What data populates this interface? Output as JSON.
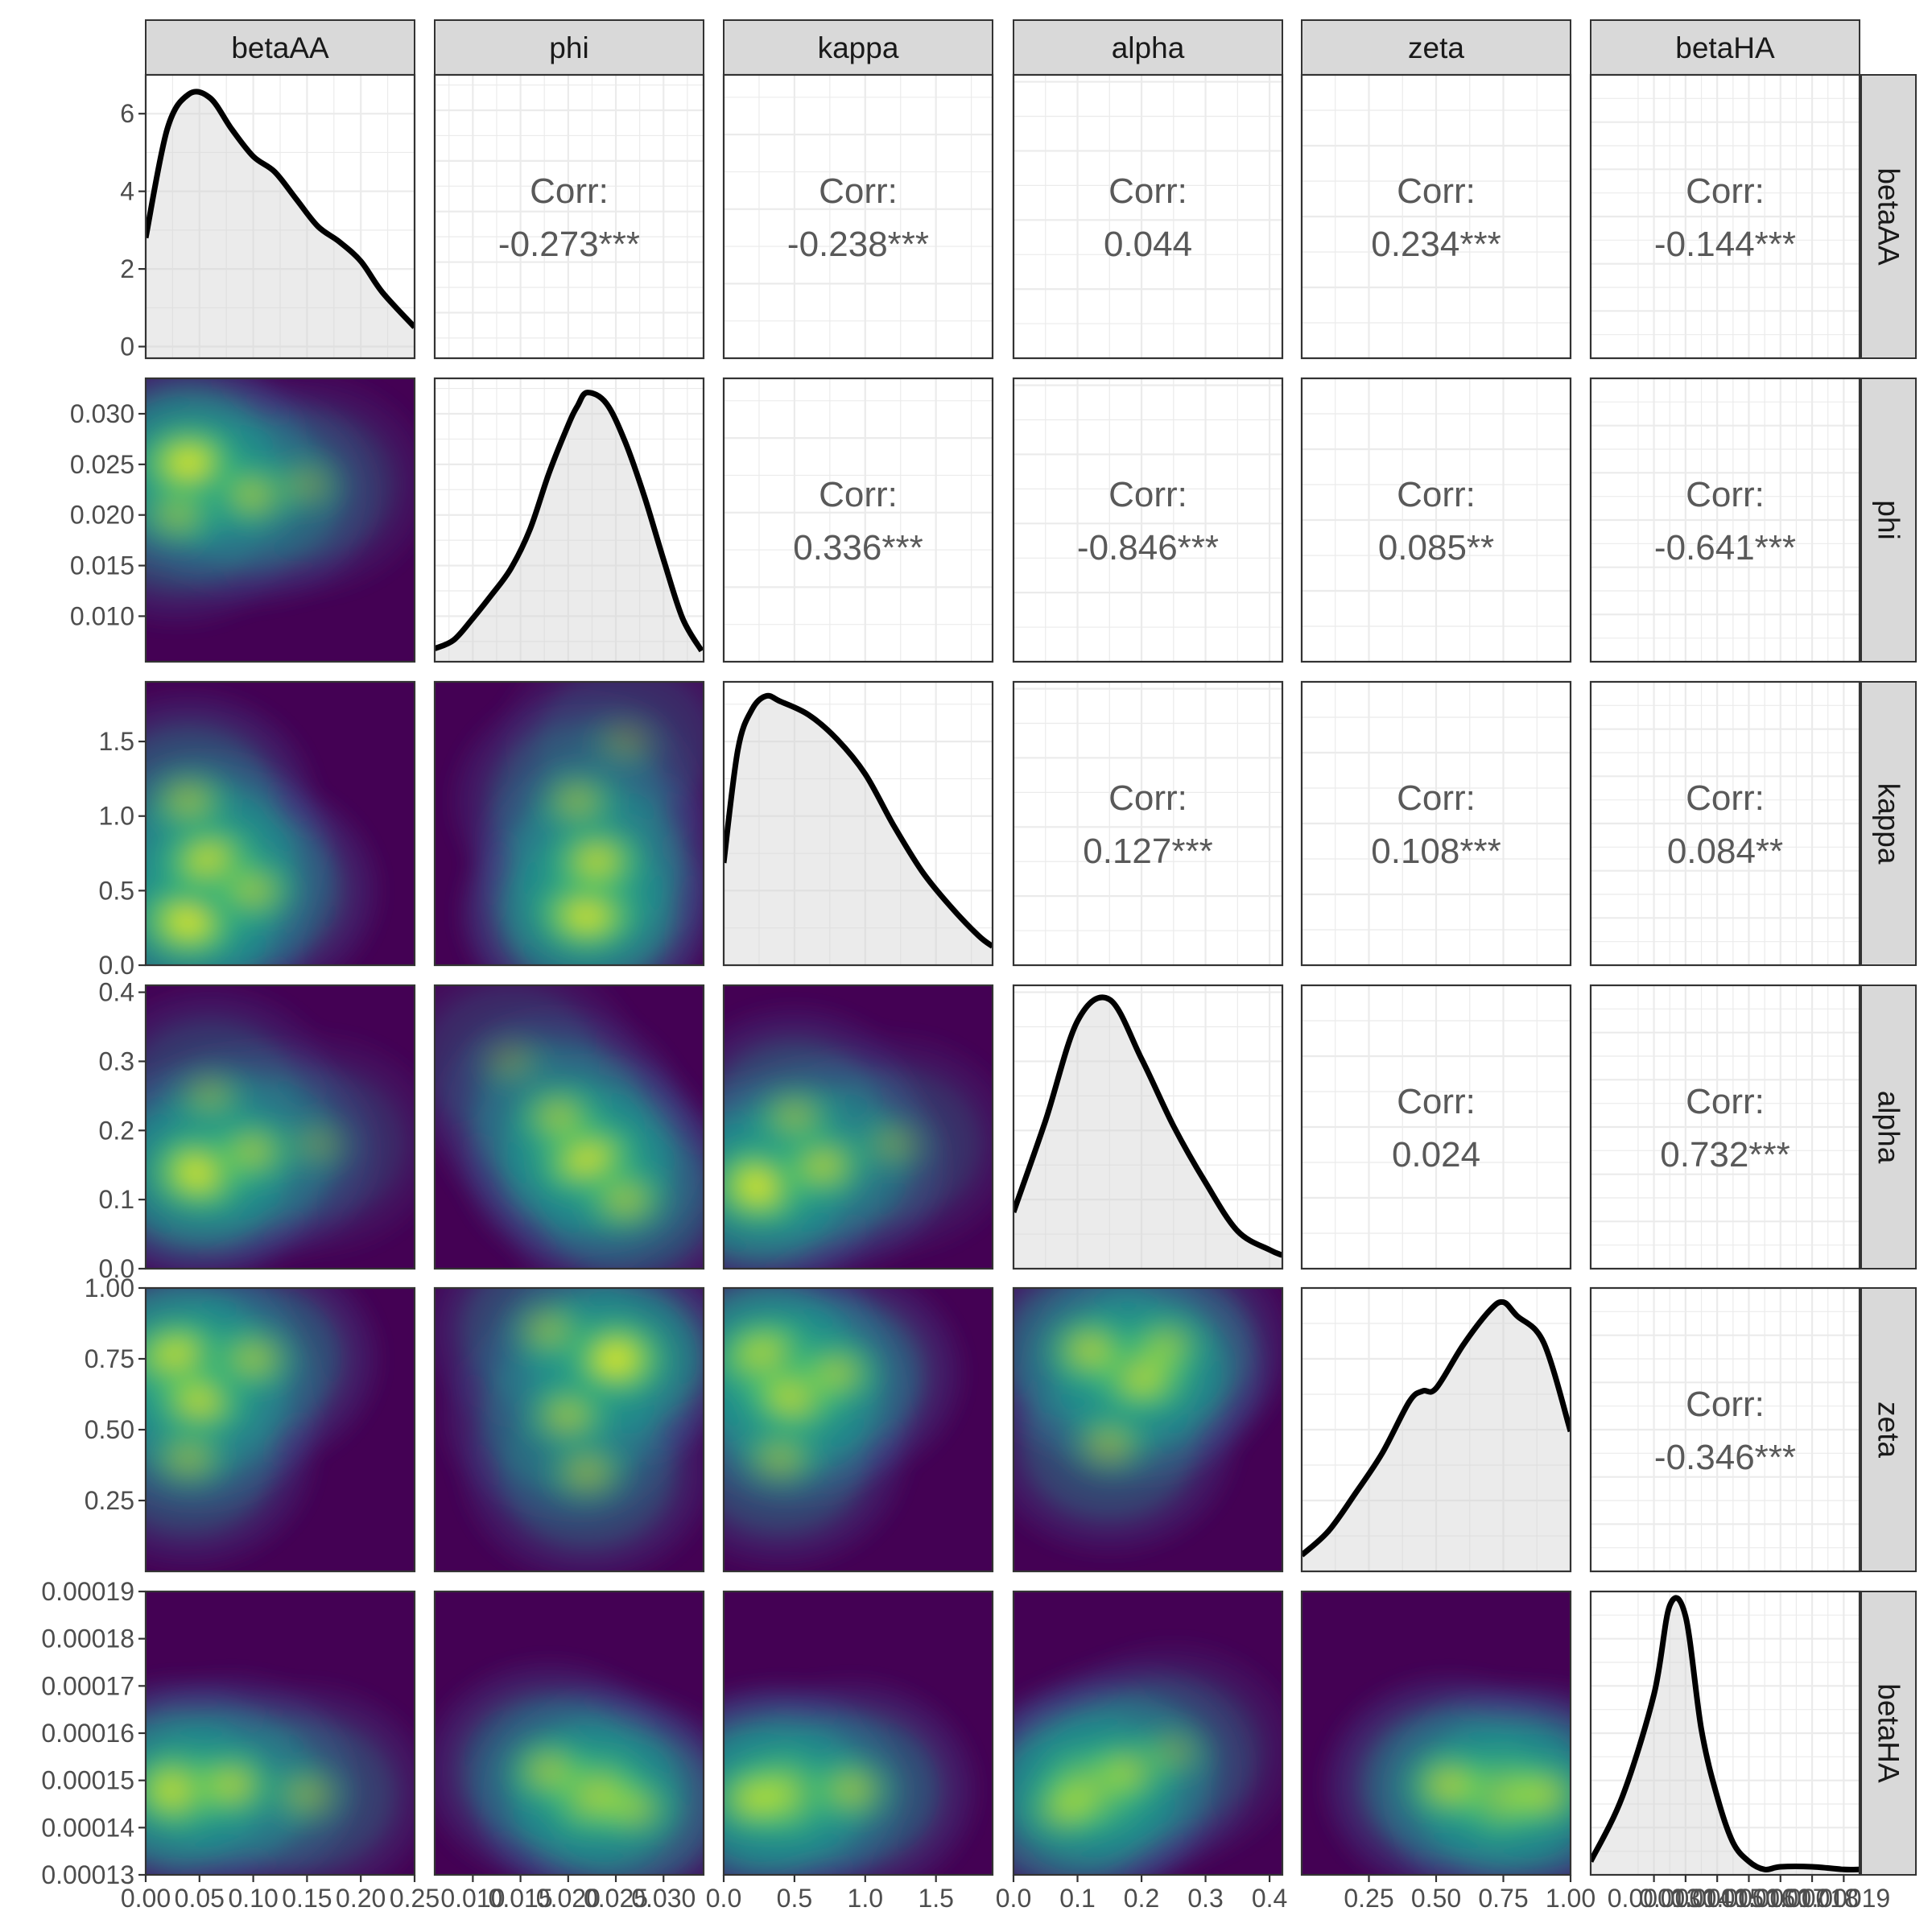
{
  "chart_data": {
    "type": "scatterplot_matrix",
    "variables": [
      "betaAA",
      "phi",
      "kappa",
      "alpha",
      "zeta",
      "betaHA"
    ],
    "correlation_label": "Corr:",
    "correlations": [
      {
        "row": "phi",
        "col": "betaAA",
        "value": "-0.273***"
      },
      {
        "row": "kappa",
        "col": "betaAA",
        "value": "-0.238***"
      },
      {
        "row": "alpha",
        "col": "betaAA",
        "value": "0.044"
      },
      {
        "row": "zeta",
        "col": "betaAA",
        "value": "0.234***"
      },
      {
        "row": "betaHA",
        "col": "betaAA",
        "value": "-0.144***"
      },
      {
        "row": "kappa",
        "col": "phi",
        "value": "0.336***"
      },
      {
        "row": "alpha",
        "col": "phi",
        "value": "-0.846***"
      },
      {
        "row": "zeta",
        "col": "phi",
        "value": "0.085**"
      },
      {
        "row": "betaHA",
        "col": "phi",
        "value": "-0.641***"
      },
      {
        "row": "alpha",
        "col": "kappa",
        "value": "0.127***"
      },
      {
        "row": "zeta",
        "col": "kappa",
        "value": "0.108***"
      },
      {
        "row": "betaHA",
        "col": "kappa",
        "value": "0.084**"
      },
      {
        "row": "zeta",
        "col": "alpha",
        "value": "0.024"
      },
      {
        "row": "betaHA",
        "col": "alpha",
        "value": "0.732***"
      },
      {
        "row": "betaHA",
        "col": "zeta",
        "value": "-0.346***"
      }
    ],
    "x_axis_ticks": {
      "betaAA": [
        "0.00",
        "0.05",
        "0.10",
        "0.15",
        "0.20",
        "0.25"
      ],
      "phi": [
        "0.010",
        "0.015",
        "0.020",
        "0.025",
        "0.030"
      ],
      "kappa": [
        "0.0",
        "0.5",
        "1.0",
        "1.5"
      ],
      "alpha": [
        "0.0",
        "0.1",
        "0.2",
        "0.3",
        "0.4"
      ],
      "zeta": [
        "0.25",
        "0.50",
        "0.75",
        "1.00"
      ],
      "betaHA": [
        "0.00013",
        "0.00014",
        "0.00015",
        "0.00016",
        "0.00017",
        "0.00018",
        "0.00019"
      ]
    },
    "y_axis_ticks": {
      "betaAA": [
        "0",
        "2",
        "4",
        "6"
      ],
      "phi": [
        "0.010",
        "0.015",
        "0.020",
        "0.025",
        "0.030"
      ],
      "kappa": [
        "0.0",
        "0.5",
        "1.0",
        "1.5"
      ],
      "alpha": [
        "0.0",
        "0.1",
        "0.2",
        "0.3",
        "0.4"
      ],
      "zeta": [
        "0.25",
        "0.50",
        "0.75",
        "1.00"
      ],
      "betaHA": [
        "0.00013",
        "0.00014",
        "0.00015",
        "0.00016",
        "0.00017",
        "0.00018",
        "0.00019"
      ]
    },
    "diagonal_density": {
      "betaAA": {
        "x": [
          0.0,
          0.02,
          0.04,
          0.06,
          0.08,
          0.1,
          0.12,
          0.14,
          0.16,
          0.18,
          0.2,
          0.22,
          0.25
        ],
        "y": [
          2.8,
          5.6,
          6.5,
          6.4,
          5.6,
          4.9,
          4.5,
          3.8,
          3.1,
          2.7,
          2.2,
          1.4,
          0.5
        ]
      },
      "phi": {
        "x": [
          0.006,
          0.008,
          0.01,
          0.012,
          0.014,
          0.016,
          0.018,
          0.02,
          0.021,
          0.022,
          0.024,
          0.026,
          0.028,
          0.03,
          0.032,
          0.034
        ],
        "y": [
          6,
          10,
          20,
          31,
          43,
          61,
          87,
          109,
          118,
          124,
          119,
          101,
          76,
          47,
          20,
          5
        ]
      },
      "kappa": {
        "x": [
          0.0,
          0.1,
          0.2,
          0.3,
          0.4,
          0.6,
          0.8,
          1.0,
          1.2,
          1.4,
          1.6,
          1.8,
          1.9
        ],
        "y": [
          0.38,
          0.8,
          0.95,
          1.0,
          0.98,
          0.93,
          0.84,
          0.71,
          0.52,
          0.35,
          0.22,
          0.11,
          0.07
        ]
      },
      "alpha": {
        "x": [
          0.0,
          0.05,
          0.1,
          0.15,
          0.2,
          0.25,
          0.3,
          0.35,
          0.4,
          0.42
        ],
        "y": [
          0.21,
          0.55,
          0.92,
          1.0,
          0.78,
          0.53,
          0.32,
          0.14,
          0.07,
          0.05
        ]
      },
      "zeta": {
        "x": [
          0.0,
          0.1,
          0.2,
          0.3,
          0.4,
          0.45,
          0.5,
          0.6,
          0.7,
          0.75,
          0.8,
          0.9,
          1.0
        ],
        "y": [
          0.06,
          0.15,
          0.29,
          0.44,
          0.63,
          0.67,
          0.68,
          0.84,
          0.97,
          1.0,
          0.95,
          0.85,
          0.52
        ]
      },
      "betaHA": {
        "x": [
          0.00011,
          0.00012,
          0.00013,
          0.000135,
          0.00014,
          0.000145,
          0.00015,
          0.000155,
          0.00016,
          0.000165,
          0.00017,
          0.00018,
          0.00019,
          0.000195
        ],
        "y": [
          0.05,
          0.29,
          0.67,
          1.0,
          0.96,
          0.54,
          0.29,
          0.12,
          0.05,
          0.02,
          0.03,
          0.03,
          0.02,
          0.02
        ]
      }
    },
    "density_2d_hotspots": {
      "phi|betaAA": [
        {
          "x": 0.04,
          "y": 0.025,
          "w": 1.0
        },
        {
          "x": 0.1,
          "y": 0.022,
          "w": 0.6
        },
        {
          "x": 0.03,
          "y": 0.02,
          "w": 0.5
        },
        {
          "x": 0.15,
          "y": 0.023,
          "w": 0.35
        }
      ],
      "kappa|betaAA": [
        {
          "x": 0.04,
          "y": 0.3,
          "w": 1.0
        },
        {
          "x": 0.06,
          "y": 0.7,
          "w": 0.9
        },
        {
          "x": 0.1,
          "y": 0.5,
          "w": 0.6
        },
        {
          "x": 0.04,
          "y": 1.1,
          "w": 0.55
        }
      ],
      "kappa|phi": [
        {
          "x": 0.022,
          "y": 0.35,
          "w": 1.0
        },
        {
          "x": 0.023,
          "y": 0.7,
          "w": 0.8
        },
        {
          "x": 0.021,
          "y": 1.1,
          "w": 0.5
        },
        {
          "x": 0.026,
          "y": 1.5,
          "w": 0.3
        }
      ],
      "alpha|betaAA": [
        {
          "x": 0.05,
          "y": 0.14,
          "w": 1.0
        },
        {
          "x": 0.1,
          "y": 0.17,
          "w": 0.6
        },
        {
          "x": 0.06,
          "y": 0.25,
          "w": 0.4
        },
        {
          "x": 0.16,
          "y": 0.18,
          "w": 0.3
        }
      ],
      "alpha|phi": [
        {
          "x": 0.022,
          "y": 0.16,
          "w": 1.0
        },
        {
          "x": 0.019,
          "y": 0.22,
          "w": 0.6
        },
        {
          "x": 0.026,
          "y": 0.1,
          "w": 0.6
        },
        {
          "x": 0.014,
          "y": 0.3,
          "w": 0.3
        }
      ],
      "alpha|kappa": [
        {
          "x": 0.25,
          "y": 0.12,
          "w": 1.0
        },
        {
          "x": 0.7,
          "y": 0.15,
          "w": 0.7
        },
        {
          "x": 0.5,
          "y": 0.22,
          "w": 0.5
        },
        {
          "x": 1.2,
          "y": 0.18,
          "w": 0.35
        }
      ],
      "zeta|betaAA": [
        {
          "x": 0.03,
          "y": 0.75,
          "w": 1.0
        },
        {
          "x": 0.05,
          "y": 0.6,
          "w": 0.8
        },
        {
          "x": 0.1,
          "y": 0.75,
          "w": 0.6
        },
        {
          "x": 0.04,
          "y": 0.4,
          "w": 0.5
        }
      ],
      "zeta|phi": [
        {
          "x": 0.025,
          "y": 0.75,
          "w": 1.0
        },
        {
          "x": 0.02,
          "y": 0.55,
          "w": 0.6
        },
        {
          "x": 0.022,
          "y": 0.35,
          "w": 0.5
        },
        {
          "x": 0.018,
          "y": 0.85,
          "w": 0.5
        }
      ],
      "zeta|kappa": [
        {
          "x": 0.3,
          "y": 0.75,
          "w": 1.0
        },
        {
          "x": 0.5,
          "y": 0.62,
          "w": 0.9
        },
        {
          "x": 0.8,
          "y": 0.7,
          "w": 0.6
        },
        {
          "x": 0.4,
          "y": 0.4,
          "w": 0.5
        }
      ],
      "zeta|alpha": [
        {
          "x": 0.2,
          "y": 0.7,
          "w": 1.0
        },
        {
          "x": 0.12,
          "y": 0.78,
          "w": 0.7
        },
        {
          "x": 0.15,
          "y": 0.45,
          "w": 0.5
        },
        {
          "x": 0.24,
          "y": 0.8,
          "w": 0.5
        }
      ],
      "betaHA|betaAA": [
        {
          "x": 0.03,
          "y": 0.000148,
          "w": 1.0
        },
        {
          "x": 0.08,
          "y": 0.000149,
          "w": 0.7
        },
        {
          "x": 0.15,
          "y": 0.000147,
          "w": 0.45
        }
      ],
      "betaHA|phi": [
        {
          "x": 0.023,
          "y": 0.000147,
          "w": 1.0
        },
        {
          "x": 0.018,
          "y": 0.000152,
          "w": 0.6
        },
        {
          "x": 0.027,
          "y": 0.000144,
          "w": 0.5
        }
      ],
      "betaHA|kappa": [
        {
          "x": 0.4,
          "y": 0.000147,
          "w": 1.0
        },
        {
          "x": 0.9,
          "y": 0.000148,
          "w": 0.6
        },
        {
          "x": 0.2,
          "y": 0.000146,
          "w": 0.6
        }
      ],
      "betaHA|alpha": [
        {
          "x": 0.12,
          "y": 0.000148,
          "w": 1.0
        },
        {
          "x": 0.18,
          "y": 0.000152,
          "w": 0.6
        },
        {
          "x": 0.08,
          "y": 0.000144,
          "w": 0.5
        },
        {
          "x": 0.25,
          "y": 0.000156,
          "w": 0.35
        }
      ],
      "betaHA|zeta": [
        {
          "x": 0.75,
          "y": 0.000147,
          "w": 1.0
        },
        {
          "x": 0.55,
          "y": 0.000149,
          "w": 0.7
        },
        {
          "x": 0.9,
          "y": 0.000147,
          "w": 0.6
        }
      ]
    }
  }
}
